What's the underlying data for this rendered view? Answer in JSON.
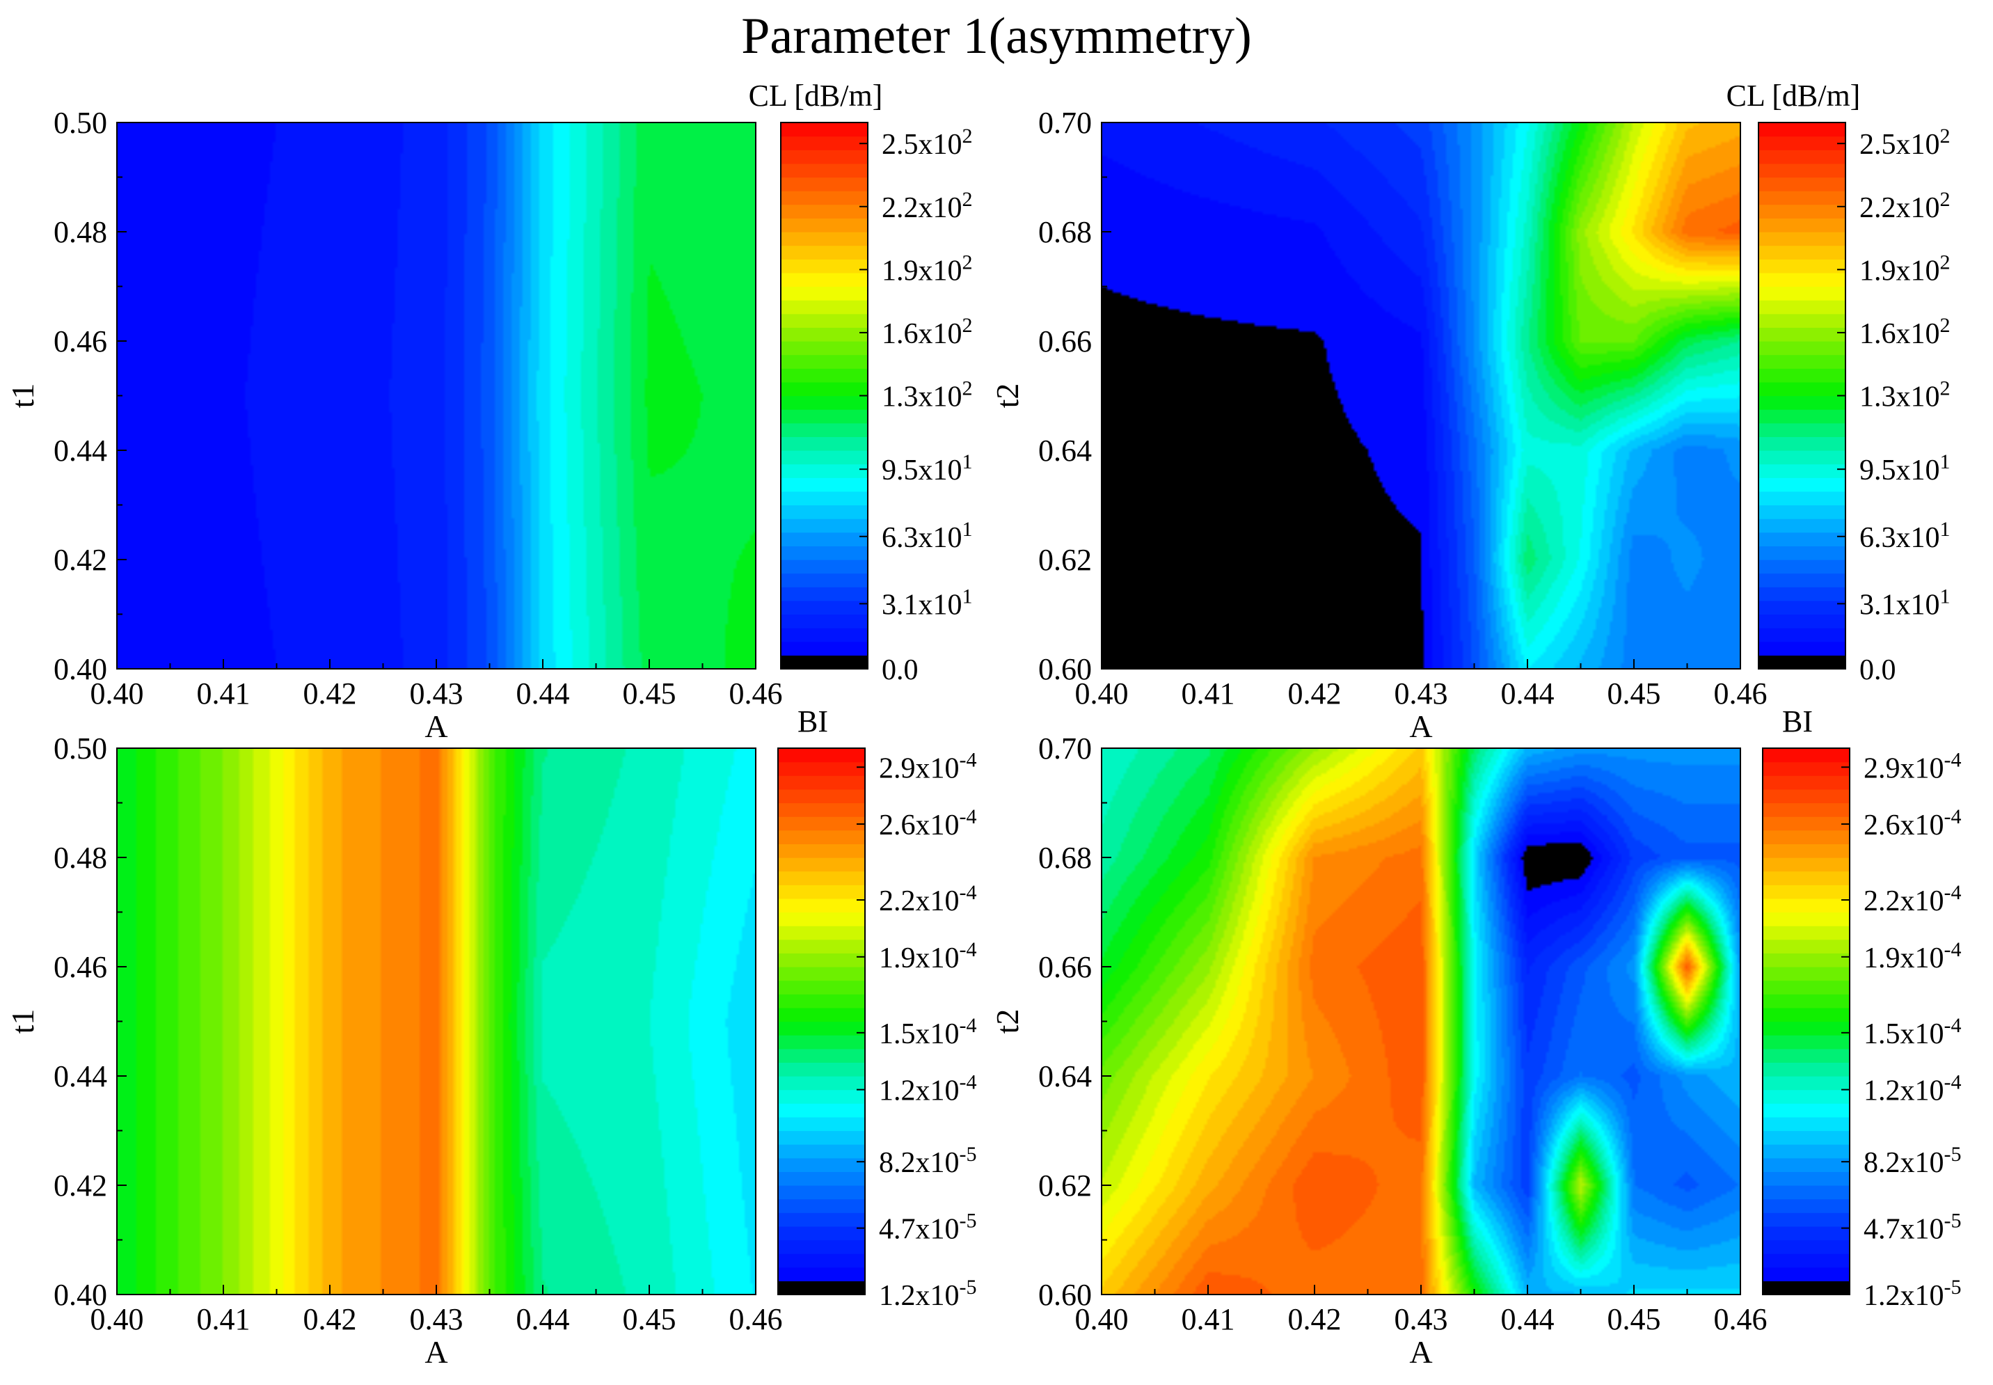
{
  "title": "Parameter 1(asymmetry)",
  "chart_data": [
    {
      "type": "heatmap",
      "panel": "top-left",
      "xlabel": "A",
      "ylabel": "t1",
      "xlim": [
        0.4,
        0.46
      ],
      "ylim": [
        0.4,
        0.5
      ],
      "xticks": [
        "0.40",
        "0.41",
        "0.42",
        "0.43",
        "0.44",
        "0.45",
        "0.46"
      ],
      "yticks": [
        "0.40",
        "0.42",
        "0.44",
        "0.46",
        "0.48",
        "0.50"
      ],
      "colorbar": {
        "label": "CL [dB/m]",
        "range": [
          0,
          260
        ],
        "ticks": [
          {
            "v": 0,
            "l": "0.0"
          },
          {
            "v": 31,
            "l": "3.1x10",
            "e": "1"
          },
          {
            "v": 63,
            "l": "6.3x10",
            "e": "1"
          },
          {
            "v": 95,
            "l": "9.5x10",
            "e": "1"
          },
          {
            "v": 130,
            "l": "1.3x10",
            "e": "2"
          },
          {
            "v": 160,
            "l": "1.6x10",
            "e": "2"
          },
          {
            "v": 190,
            "l": "1.9x10",
            "e": "2"
          },
          {
            "v": 220,
            "l": "2.2x10",
            "e": "2"
          },
          {
            "v": 250,
            "l": "2.5x10",
            "e": "2"
          }
        ]
      },
      "grid_x": [
        0.4,
        0.42,
        0.43,
        0.435,
        0.44,
        0.45,
        0.46
      ],
      "grid_y": [
        0.4,
        0.45,
        0.5
      ],
      "z": [
        [
          10,
          14,
          22,
          40,
          80,
          120,
          125
        ],
        [
          10,
          15,
          23,
          42,
          82,
          125,
          122
        ],
        [
          10,
          14,
          22,
          40,
          80,
          122,
          120
        ]
      ]
    },
    {
      "type": "heatmap",
      "panel": "top-right",
      "xlabel": "A",
      "ylabel": "t2",
      "xlim": [
        0.4,
        0.46
      ],
      "ylim": [
        0.6,
        0.7
      ],
      "xticks": [
        "0.40",
        "0.41",
        "0.42",
        "0.43",
        "0.44",
        "0.45",
        "0.46"
      ],
      "yticks": [
        "0.60",
        "0.62",
        "0.64",
        "0.66",
        "0.68",
        "0.70"
      ],
      "colorbar": {
        "label": "CL [dB/m]",
        "range": [
          0,
          260
        ],
        "ticks": [
          {
            "v": 0,
            "l": "0.0"
          },
          {
            "v": 31,
            "l": "3.1x10",
            "e": "1"
          },
          {
            "v": 63,
            "l": "6.3x10",
            "e": "1"
          },
          {
            "v": 95,
            "l": "9.5x10",
            "e": "1"
          },
          {
            "v": 130,
            "l": "1.3x10",
            "e": "2"
          },
          {
            "v": 160,
            "l": "1.6x10",
            "e": "2"
          },
          {
            "v": 190,
            "l": "1.9x10",
            "e": "2"
          },
          {
            "v": 220,
            "l": "2.2x10",
            "e": "2"
          },
          {
            "v": 250,
            "l": "2.5x10",
            "e": "2"
          }
        ]
      },
      "grid_x": [
        0.4,
        0.42,
        0.43,
        0.435,
        0.44,
        0.445,
        0.45,
        0.455,
        0.46
      ],
      "grid_y": [
        0.6,
        0.62,
        0.64,
        0.66,
        0.68,
        0.7
      ],
      "z": [
        [
          5,
          5,
          5,
          40,
          85,
          70,
          55,
          55,
          55
        ],
        [
          5,
          5,
          6,
          45,
          115,
          90,
          55,
          60,
          55
        ],
        [
          5,
          5,
          8,
          50,
          95,
          95,
          70,
          55,
          60
        ],
        [
          5,
          6,
          12,
          60,
          110,
          150,
          150,
          120,
          110
        ],
        [
          8,
          12,
          25,
          60,
          100,
          160,
          190,
          225,
          230
        ],
        [
          15,
          25,
          35,
          60,
          90,
          130,
          170,
          200,
          205
        ]
      ]
    },
    {
      "type": "heatmap",
      "panel": "bottom-left",
      "xlabel": "A",
      "ylabel": "t1",
      "xlim": [
        0.4,
        0.46
      ],
      "ylim": [
        0.4,
        0.5
      ],
      "xticks": [
        "0.40",
        "0.41",
        "0.42",
        "0.43",
        "0.44",
        "0.45",
        "0.46"
      ],
      "yticks": [
        "0.40",
        "0.42",
        "0.44",
        "0.46",
        "0.48",
        "0.50"
      ],
      "colorbar": {
        "label": "BI",
        "range": [
          1.2e-05,
          0.0003
        ],
        "ticks": [
          {
            "v": 1.2e-05,
            "l": "1.2x10",
            "e": "-5"
          },
          {
            "v": 4.7e-05,
            "l": "4.7x10",
            "e": "-5"
          },
          {
            "v": 8.2e-05,
            "l": "8.2x10",
            "e": "-5"
          },
          {
            "v": 0.00012,
            "l": "1.2x10",
            "e": "-4"
          },
          {
            "v": 0.00015,
            "l": "1.5x10",
            "e": "-4"
          },
          {
            "v": 0.00019,
            "l": "1.9x10",
            "e": "-4"
          },
          {
            "v": 0.00022,
            "l": "2.2x10",
            "e": "-4"
          },
          {
            "v": 0.00026,
            "l": "2.6x10",
            "e": "-4"
          },
          {
            "v": 0.00029,
            "l": "2.9x10",
            "e": "-4"
          }
        ]
      },
      "grid_x": [
        0.4,
        0.41,
        0.415,
        0.42,
        0.43,
        0.435,
        0.44,
        0.45,
        0.46
      ],
      "grid_y": [
        0.4,
        0.45,
        0.5
      ],
      "z": [
        [
          0.00015,
          0.000185,
          0.00021,
          0.00024,
          0.00026,
          0.000175,
          0.000135,
          0.000125,
          0.000105
        ],
        [
          0.00015,
          0.000185,
          0.00021,
          0.00024,
          0.00026,
          0.000175,
          0.000125,
          0.00012,
          0.0001
        ],
        [
          0.00015,
          0.000185,
          0.00021,
          0.00024,
          0.00026,
          0.000175,
          0.000135,
          0.000125,
          0.00011
        ]
      ]
    },
    {
      "type": "heatmap",
      "panel": "bottom-right",
      "xlabel": "A",
      "ylabel": "t2",
      "xlim": [
        0.4,
        0.46
      ],
      "ylim": [
        0.6,
        0.7
      ],
      "xticks": [
        "0.40",
        "0.41",
        "0.42",
        "0.43",
        "0.44",
        "0.45",
        "0.46"
      ],
      "yticks": [
        "0.60",
        "0.62",
        "0.64",
        "0.66",
        "0.68",
        "0.70"
      ],
      "colorbar": {
        "label": "BI",
        "range": [
          1.2e-05,
          0.0003
        ],
        "ticks": [
          {
            "v": 1.2e-05,
            "l": "1.2x10",
            "e": "-5"
          },
          {
            "v": 4.7e-05,
            "l": "4.7x10",
            "e": "-5"
          },
          {
            "v": 8.2e-05,
            "l": "8.2x10",
            "e": "-5"
          },
          {
            "v": 0.00012,
            "l": "1.2x10",
            "e": "-4"
          },
          {
            "v": 0.00015,
            "l": "1.5x10",
            "e": "-4"
          },
          {
            "v": 0.00019,
            "l": "1.9x10",
            "e": "-4"
          },
          {
            "v": 0.00022,
            "l": "2.2x10",
            "e": "-4"
          },
          {
            "v": 0.00026,
            "l": "2.6x10",
            "e": "-4"
          },
          {
            "v": 0.00029,
            "l": "2.9x10",
            "e": "-4"
          }
        ]
      },
      "grid_x": [
        0.4,
        0.41,
        0.42,
        0.43,
        0.435,
        0.44,
        0.445,
        0.45,
        0.455,
        0.46
      ],
      "grid_y": [
        0.6,
        0.62,
        0.64,
        0.66,
        0.68,
        0.7
      ],
      "z": [
        [
          0.00023,
          0.00027,
          0.00026,
          0.00026,
          0.00016,
          9e-05,
          9e-05,
          0.0001,
          0.0001,
          0.0001
        ],
        [
          0.0002,
          0.00024,
          0.00027,
          0.00026,
          9e-05,
          5e-05,
          0.0002,
          7e-05,
          6e-05,
          7e-05
        ],
        [
          0.00018,
          0.00022,
          0.00025,
          0.00027,
          0.00011,
          5e-05,
          7e-05,
          6e-05,
          8e-05,
          9e-05
        ],
        [
          0.00015,
          0.00019,
          0.00026,
          0.00027,
          0.00011,
          4e-05,
          6e-05,
          8e-05,
          0.00027,
          8e-05
        ],
        [
          0.00013,
          0.00016,
          0.00025,
          0.00026,
          0.0001,
          1e-05,
          1e-05,
          5e-05,
          6e-05,
          6e-05
        ],
        [
          0.00012,
          0.00014,
          0.00019,
          0.00023,
          0.00014,
          9e-05,
          8e-05,
          8e-05,
          8e-05,
          8e-05
        ]
      ]
    }
  ]
}
